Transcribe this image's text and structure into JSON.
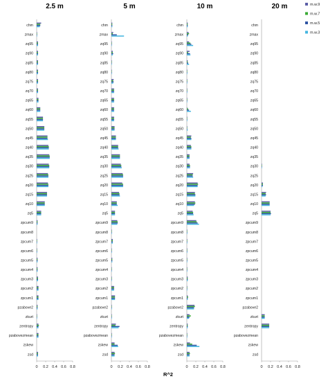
{
  "chart_data": {
    "type": "bar",
    "orientation": "horizontal",
    "xlabel": "R^2",
    "xlim": [
      0,
      0.8
    ],
    "xticks": [
      "0",
      "0.2",
      "0.4",
      "0.6",
      "0.8"
    ],
    "legend_position": "top-right",
    "grid": false,
    "categories": [
      "chm",
      "zmax",
      "zq95",
      "zq90",
      "zq85",
      "zq80",
      "zq75",
      "zq70",
      "zq65",
      "zq60",
      "zq55",
      "zq50",
      "zq45",
      "zq40",
      "zq35",
      "zq30",
      "zq25",
      "zq20",
      "zq15",
      "zq10",
      "zq5",
      "zpcum9",
      "zpcum8",
      "zpcum7",
      "zpcum6",
      "zpcum5",
      "zpcum4",
      "zpcum3",
      "zpcum2",
      "zpcum1",
      "pzabove2",
      "zkurt",
      "zentropy",
      "pzabovezmean",
      "zskew",
      "zsd"
    ],
    "series_names": [
      "m.w.9",
      "m.w.7",
      "m.w.5",
      "m.w.3"
    ],
    "series_colors": [
      "#5b5ea6",
      "#3aaa35",
      "#2f55a4",
      "#45b6e0"
    ],
    "panels": [
      {
        "title": "2.5 m",
        "values": {
          "chm": [
            0.1,
            0.08,
            0.08,
            0.07
          ],
          "zmax": [
            0.01,
            0.01,
            0.01,
            0.01
          ],
          "zq95": [
            0.03,
            0.03,
            0.03,
            0.03
          ],
          "zq90": [
            0.03,
            0.03,
            0.03,
            0.03
          ],
          "zq85": [
            0.03,
            0.03,
            0.03,
            0.03
          ],
          "zq80": [
            0.03,
            0.03,
            0.03,
            0.03
          ],
          "zq75": [
            0.03,
            0.03,
            0.03,
            0.03
          ],
          "zq70": [
            0.03,
            0.03,
            0.03,
            0.03
          ],
          "zq65": [
            0.04,
            0.04,
            0.04,
            0.04
          ],
          "zq60": [
            0.08,
            0.08,
            0.08,
            0.08
          ],
          "zq55": [
            0.14,
            0.14,
            0.14,
            0.14
          ],
          "zq50": [
            0.17,
            0.17,
            0.17,
            0.17
          ],
          "zq45": [
            0.24,
            0.24,
            0.24,
            0.25
          ],
          "zq40": [
            0.26,
            0.27,
            0.27,
            0.27
          ],
          "zq35": [
            0.28,
            0.29,
            0.29,
            0.29
          ],
          "zq30": [
            0.27,
            0.28,
            0.28,
            0.28
          ],
          "zq25": [
            0.25,
            0.26,
            0.26,
            0.26
          ],
          "zq20": [
            0.25,
            0.26,
            0.26,
            0.26
          ],
          "zq15": [
            0.23,
            0.23,
            0.23,
            0.23
          ],
          "zq10": [
            0.18,
            0.18,
            0.18,
            0.18
          ],
          "zq5": [
            0.1,
            0.1,
            0.1,
            0.1
          ],
          "zpcum9": [
            0.02,
            0.02,
            0.02,
            0.02
          ],
          "zpcum8": [
            0.0,
            0.0,
            0.0,
            0.0
          ],
          "zpcum7": [
            0.01,
            0.01,
            0.01,
            0.01
          ],
          "zpcum6": [
            0.01,
            0.01,
            0.01,
            0.01
          ],
          "zpcum5": [
            0.02,
            0.02,
            0.02,
            0.02
          ],
          "zpcum4": [
            0.02,
            0.02,
            0.02,
            0.02
          ],
          "zpcum3": [
            0.03,
            0.03,
            0.03,
            0.03
          ],
          "zpcum2": [
            0.04,
            0.04,
            0.04,
            0.04
          ],
          "zpcum1": [
            0.04,
            0.04,
            0.04,
            0.04
          ],
          "pzabove2": [
            0.02,
            0.02,
            0.02,
            0.02
          ],
          "zkurt": [
            0.01,
            0.01,
            0.01,
            0.01
          ],
          "zentropy": [
            0.04,
            0.05,
            0.04,
            0.04
          ],
          "pzabovezmean": [
            0.04,
            0.04,
            0.04,
            0.04
          ],
          "zskew": [
            0.0,
            0.0,
            0.0,
            0.0
          ],
          "zsd": [
            0.03,
            0.03,
            0.03,
            0.03
          ]
        }
      },
      {
        "title": "5 m",
        "values": {
          "chm": [
            0.02,
            0.02,
            0.02,
            0.02
          ],
          "zmax": [
            0.04,
            0.03,
            0.12,
            0.28
          ],
          "zq95": [
            0.01,
            0.01,
            0.01,
            0.01
          ],
          "zq90": [
            0.03,
            0.03,
            0.04,
            0.03
          ],
          "zq85": [
            0.01,
            0.01,
            0.01,
            0.01
          ],
          "zq80": [
            0.01,
            0.01,
            0.01,
            0.01
          ],
          "zq75": [
            0.05,
            0.04,
            0.05,
            0.04
          ],
          "zq70": [
            0.06,
            0.06,
            0.06,
            0.06
          ],
          "zq65": [
            0.06,
            0.06,
            0.06,
            0.06
          ],
          "zq60": [
            0.06,
            0.06,
            0.06,
            0.06
          ],
          "zq55": [
            0.06,
            0.06,
            0.06,
            0.06
          ],
          "zq50": [
            0.07,
            0.07,
            0.07,
            0.07
          ],
          "zq45": [
            0.1,
            0.1,
            0.1,
            0.1
          ],
          "zq40": [
            0.15,
            0.15,
            0.15,
            0.16
          ],
          "zq35": [
            0.19,
            0.19,
            0.19,
            0.19
          ],
          "zq30": [
            0.21,
            0.22,
            0.22,
            0.23
          ],
          "zq25": [
            0.25,
            0.26,
            0.26,
            0.26
          ],
          "zq20": [
            0.24,
            0.26,
            0.26,
            0.26
          ],
          "zq15": [
            0.17,
            0.18,
            0.18,
            0.19
          ],
          "zq10": [
            0.12,
            0.12,
            0.12,
            0.14
          ],
          "zq5": [
            0.08,
            0.08,
            0.08,
            0.08
          ],
          "zpcum9": [
            0.13,
            0.14,
            0.14,
            0.13
          ],
          "zpcum8": [
            0.01,
            0.01,
            0.01,
            0.01
          ],
          "zpcum7": [
            0.03,
            0.03,
            0.03,
            0.03
          ],
          "zpcum6": [
            0.01,
            0.01,
            0.01,
            0.01
          ],
          "zpcum5": [
            0.02,
            0.02,
            0.02,
            0.02
          ],
          "zpcum4": [
            0.01,
            0.01,
            0.01,
            0.01
          ],
          "zpcum3": [
            0.01,
            0.01,
            0.01,
            0.01
          ],
          "zpcum2": [
            0.06,
            0.06,
            0.06,
            0.06
          ],
          "zpcum1": [
            0.08,
            0.08,
            0.08,
            0.08
          ],
          "pzabove2": [
            0.01,
            0.01,
            0.01,
            0.01
          ],
          "zkurt": [
            0.01,
            0.01,
            0.01,
            0.01
          ],
          "zentropy": [
            0.1,
            0.09,
            0.18,
            0.16
          ],
          "pzabovezmean": [
            0.01,
            0.01,
            0.01,
            0.01
          ],
          "zskew": [
            0.07,
            0.07,
            0.14,
            0.15
          ],
          "zsd": [
            0.07,
            0.08,
            0.07,
            0.07
          ]
        }
      },
      {
        "title": "10 m",
        "values": {
          "chm": [
            0.02,
            0.02,
            0.02,
            0.02
          ],
          "zmax": [
            0.04,
            0.05,
            0.03,
            0.02
          ],
          "zq95": [
            0.05,
            0.08,
            0.1,
            0.14
          ],
          "zq90": [
            0.06,
            0.03,
            0.07,
            0.08
          ],
          "zq85": [
            0.02,
            0.02,
            0.03,
            0.05
          ],
          "zq80": [
            0.01,
            0.01,
            0.01,
            0.01
          ],
          "zq75": [
            0.01,
            0.01,
            0.01,
            0.01
          ],
          "zq70": [
            0.01,
            0.01,
            0.01,
            0.01
          ],
          "zq65": [
            0.01,
            0.01,
            0.01,
            0.01
          ],
          "zq60": [
            0.01,
            0.03,
            0.05,
            0.09
          ],
          "zq55": [
            0.01,
            0.01,
            0.01,
            0.01
          ],
          "zq50": [
            0.01,
            0.01,
            0.01,
            0.02
          ],
          "zq45": [
            0.1,
            0.09,
            0.1,
            0.1
          ],
          "zq40": [
            0.09,
            0.1,
            0.1,
            0.1
          ],
          "zq35": [
            0.06,
            0.06,
            0.06,
            0.06
          ],
          "zq30": [
            0.06,
            0.07,
            0.07,
            0.07
          ],
          "zq25": [
            0.14,
            0.13,
            0.13,
            0.14
          ],
          "zq20": [
            0.24,
            0.25,
            0.24,
            0.24
          ],
          "zq15": [
            0.18,
            0.18,
            0.19,
            0.19
          ],
          "zq10": [
            0.18,
            0.19,
            0.18,
            0.16
          ],
          "zq5": [
            0.13,
            0.14,
            0.14,
            0.15
          ],
          "zpcum9": [
            0.21,
            0.22,
            0.24,
            0.27
          ],
          "zpcum8": [
            0.01,
            0.01,
            0.01,
            0.01
          ],
          "zpcum7": [
            0.01,
            0.01,
            0.01,
            0.01
          ],
          "zpcum6": [
            0.01,
            0.01,
            0.01,
            0.01
          ],
          "zpcum5": [
            0.01,
            0.01,
            0.01,
            0.01
          ],
          "zpcum4": [
            0.01,
            0.01,
            0.01,
            0.01
          ],
          "zpcum3": [
            0.02,
            0.02,
            0.02,
            0.02
          ],
          "zpcum2": [
            0.01,
            0.01,
            0.01,
            0.01
          ],
          "zpcum1": [
            0.02,
            0.03,
            0.02,
            0.02
          ],
          "pzabove2": [
            0.17,
            0.18,
            0.16,
            0.16
          ],
          "zkurt": [
            0.06,
            0.09,
            0.06,
            0.05
          ],
          "zentropy": [
            0.02,
            0.02,
            0.02,
            0.02
          ],
          "pzabovezmean": [
            0.01,
            0.01,
            0.01,
            0.01
          ],
          "zskew": [
            0.07,
            0.12,
            0.22,
            0.28
          ],
          "zsd": [
            0.06,
            0.07,
            0.06,
            0.06
          ]
        }
      },
      {
        "title": "20 m",
        "values": {
          "chm": [
            0,
            0,
            0,
            0
          ],
          "zmax": [
            0,
            0,
            0,
            0
          ],
          "zq95": [
            0,
            0,
            0,
            0
          ],
          "zq90": [
            0,
            0,
            0,
            0
          ],
          "zq85": [
            0,
            0,
            0,
            0
          ],
          "zq80": [
            0,
            0,
            0,
            0
          ],
          "zq75": [
            0,
            0,
            0,
            0
          ],
          "zq70": [
            0,
            0,
            0,
            0
          ],
          "zq65": [
            0,
            0,
            0,
            0
          ],
          "zq60": [
            0,
            0,
            0,
            0
          ],
          "zq55": [
            0,
            0,
            0,
            0
          ],
          "zq50": [
            0,
            0,
            0,
            0
          ],
          "zq45": [
            0,
            0,
            0,
            0
          ],
          "zq40": [
            0,
            0,
            0,
            0
          ],
          "zq35": [
            0,
            0,
            0,
            0
          ],
          "zq30": [
            0.01,
            0.01,
            0.01,
            0.01
          ],
          "zq25": [
            0,
            0,
            0,
            0
          ],
          "zq20": [
            0.03,
            0.03,
            0.03,
            0.02
          ],
          "zq15": [
            0.1,
            0.09,
            0.1,
            0.09
          ],
          "zq10": [
            0.18,
            0.18,
            0.18,
            0.18
          ],
          "zq5": [
            0.2,
            0.2,
            0.21,
            0.2
          ],
          "zpcum9": [
            0,
            0,
            0,
            0
          ],
          "zpcum8": [
            0,
            0,
            0,
            0
          ],
          "zpcum7": [
            0,
            0,
            0,
            0
          ],
          "zpcum6": [
            0,
            0,
            0,
            0
          ],
          "zpcum5": [
            0,
            0,
            0,
            0
          ],
          "zpcum4": [
            0,
            0,
            0,
            0
          ],
          "zpcum3": [
            0,
            0,
            0,
            0
          ],
          "zpcum2": [
            0,
            0,
            0,
            0
          ],
          "zpcum1": [
            0,
            0,
            0,
            0
          ],
          "pzabove2": [
            0,
            0,
            0,
            0
          ],
          "zkurt": [
            0.07,
            0.07,
            0.07,
            0.07
          ],
          "zentropy": [
            0.17,
            0.17,
            0.17,
            0.17
          ],
          "pzabovezmean": [
            0,
            0,
            0,
            0
          ],
          "zskew": [
            0,
            0,
            0,
            0
          ],
          "zsd": [
            0,
            0,
            0,
            0
          ]
        }
      }
    ]
  }
}
